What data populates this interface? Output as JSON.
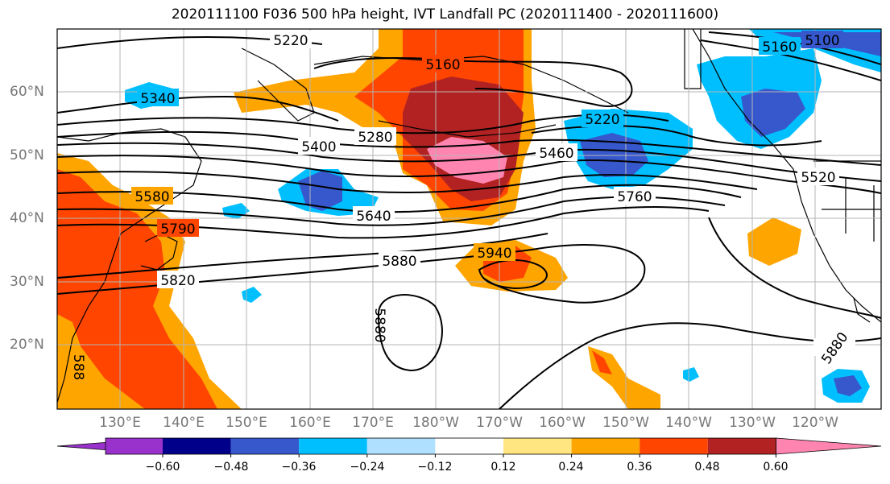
{
  "title": "2020111100 F036 500 hPa height, IVT Landfall PC (2020111400 - 2020111600)",
  "lon_labels": [
    "130°E",
    "140°E",
    "150°E",
    "160°E",
    "170°E",
    "180°W",
    "170°W",
    "160°W",
    "150°W",
    "140°W",
    "130°W",
    "120°W"
  ],
  "lat_labels": [
    "60°N",
    "50°N",
    "40°N",
    "30°N",
    "20°N"
  ],
  "contour_labels": [
    "5220",
    "5160",
    "5100",
    "5340",
    "5160",
    "5280",
    "5220",
    "5400",
    "5460",
    "5520",
    "5580",
    "5760",
    "5640",
    "5790",
    "5880",
    "5940",
    "5820",
    "5880",
    "5880",
    "588"
  ],
  "colorbar": {
    "ticks": [
      "−0.60",
      "−0.48",
      "−0.36",
      "−0.24",
      "−0.12",
      "0.12",
      "0.24",
      "0.36",
      "0.48",
      "0.60"
    ],
    "colors": [
      "#9932cc",
      "#00008b",
      "#3658cc",
      "#00bfff",
      "#b0e0ff",
      "#ffffff",
      "#ffe680",
      "#ffa500",
      "#ff4500",
      "#b22222",
      "#ff85b0"
    ]
  },
  "palette": {
    "pink": "#ff85b0",
    "darkred": "#b22222",
    "red": "#ff4500",
    "orange": "#ffa500",
    "yellow": "#ffe680",
    "cyan": "#00bfff",
    "blue": "#3658cc",
    "lightblue": "#b0e0ff"
  }
}
